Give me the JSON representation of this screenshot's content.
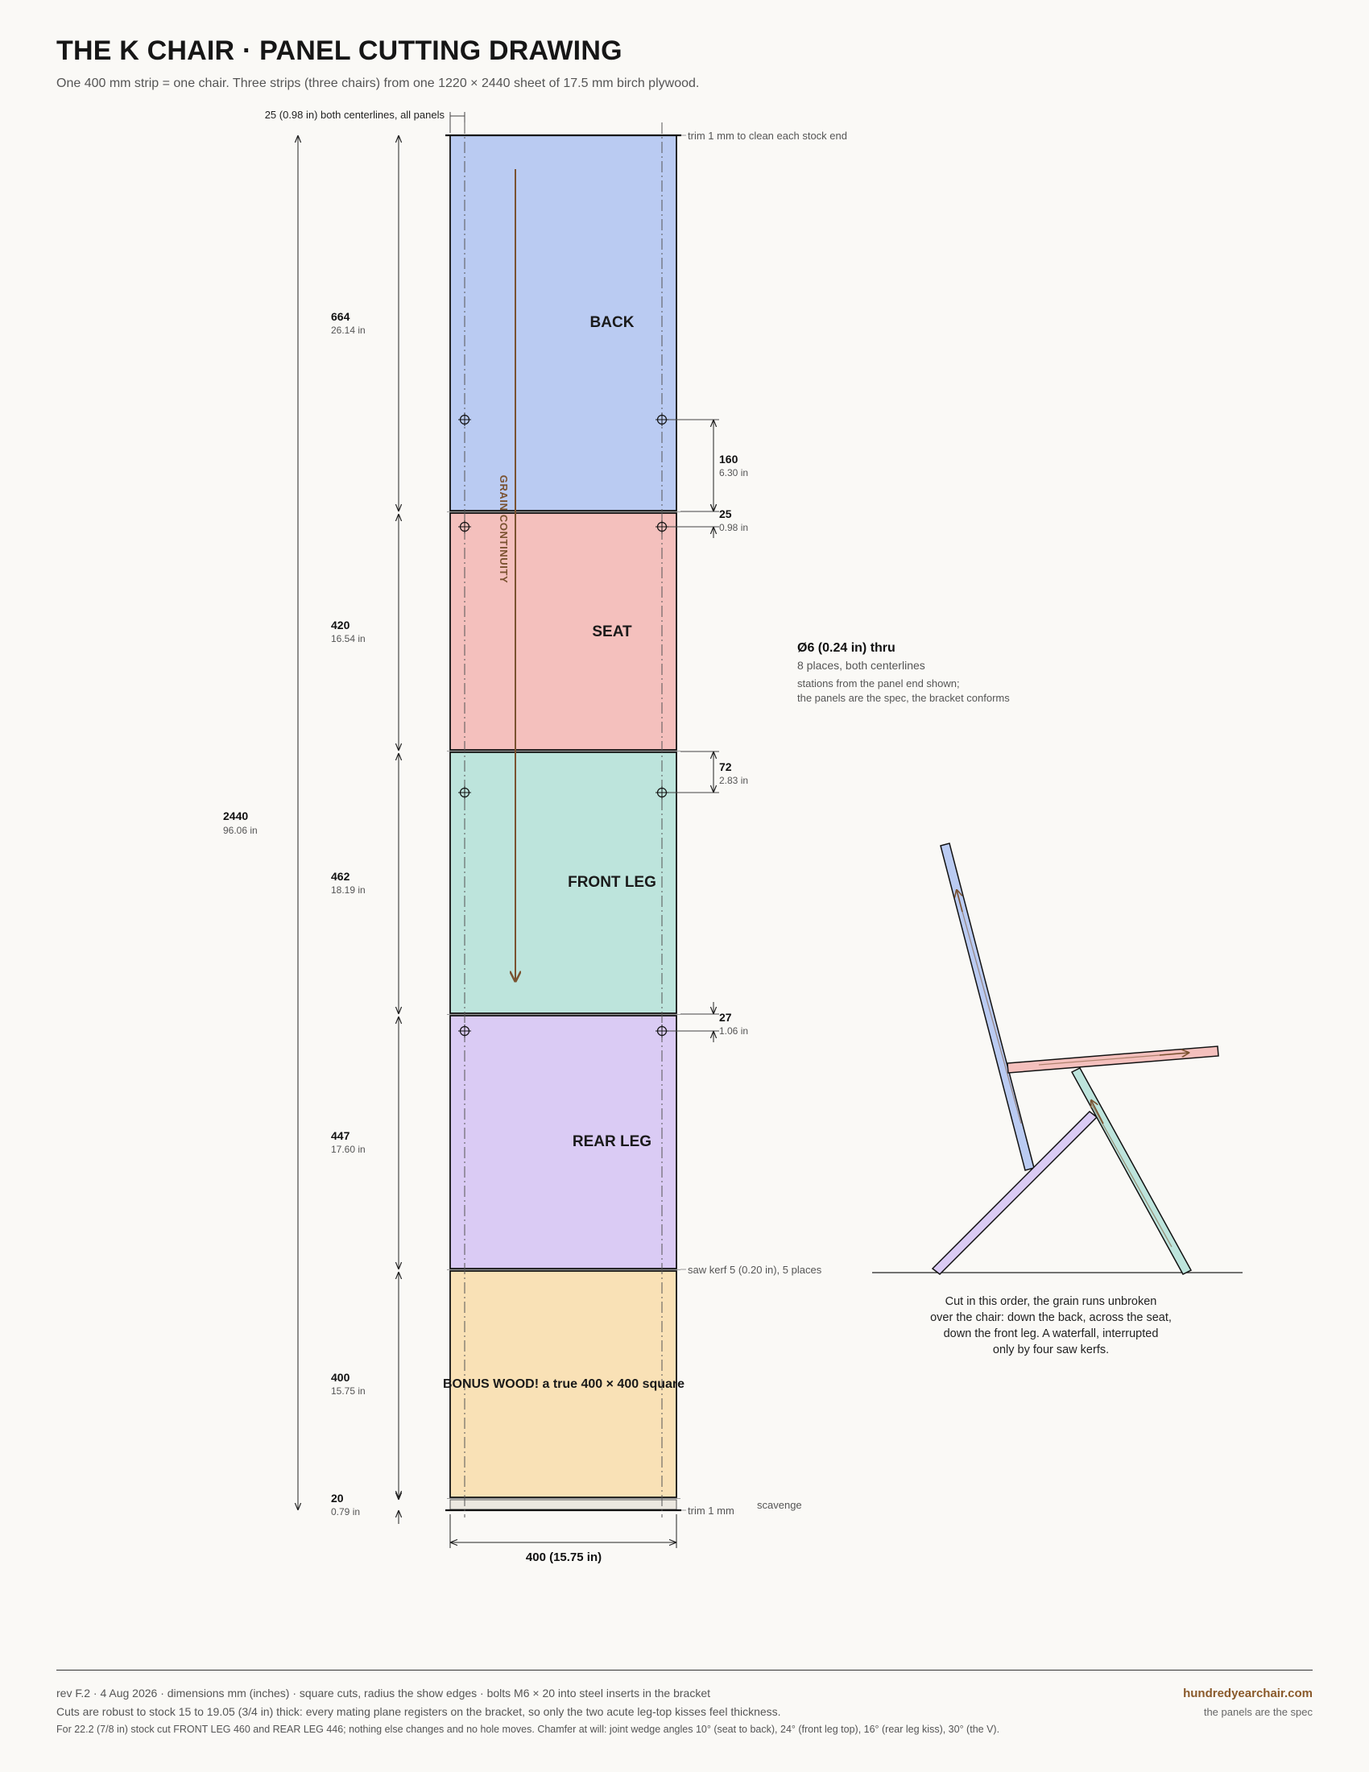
{
  "header": {
    "title": "THE K CHAIR · PANEL CUTTING DRAWING",
    "subtitle": "One 400 mm strip = one chair. Three strips (three chairs) from one 1220 × 2440 sheet of 17.5 mm birch plywood."
  },
  "strip": {
    "centerline_note": "25 (0.98 in) both centerlines, all panels",
    "width_label": "400 (15.75 in)",
    "total": {
      "mm": "2440",
      "in": "96.06 in"
    },
    "panels": [
      {
        "name": "BACK",
        "mm": "664",
        "in": "26.14 in",
        "color": "#bacbf2"
      },
      {
        "name": "SEAT",
        "mm": "420",
        "in": "16.54 in",
        "color": "#f4c0bd"
      },
      {
        "name": "FRONT LEG",
        "mm": "462",
        "in": "18.19 in",
        "color": "#bde4dc"
      },
      {
        "name": "REAR LEG",
        "mm": "447",
        "in": "17.60 in",
        "color": "#dacbf4"
      },
      {
        "name": "BONUS WOOD! a true 400 × 400 square",
        "mm": "400",
        "in": "15.75 in",
        "color": "#f9e1b6"
      },
      {
        "name": "",
        "mm": "20",
        "in": "0.79 in",
        "color": "#ece8e0"
      }
    ],
    "hole_dims": [
      {
        "mm": "160",
        "in": "6.30 in"
      },
      {
        "mm": "25",
        "in": "0.98 in"
      },
      {
        "mm": "72",
        "in": "2.83 in"
      },
      {
        "mm": "27",
        "in": "1.06 in"
      }
    ],
    "notes": {
      "trim_top": "trim 1 mm to clean each stock end",
      "kerf": "saw kerf 5 (0.20 in), 5 places",
      "trim_bottom": "trim 1 mm",
      "scavenge": "scavenge",
      "grain": "GRAIN CONTINUITY"
    }
  },
  "hole_callout": {
    "title": "Ø6 (0.24 in) thru",
    "line1": "8 places, both centerlines",
    "line2": "stations from the panel end shown;",
    "line3": "the panels are the spec, the bracket conforms"
  },
  "chair_caption": [
    "Cut in this order, the grain runs unbroken",
    "over the chair: down the back, across the seat,",
    "down the front leg. A waterfall, interrupted",
    "only by four saw kerfs."
  ],
  "footer": {
    "line1": "rev F.2 · 4 Aug 2026 · dimensions mm (inches) · square cuts, radius the show edges · bolts M6 × 20 into steel inserts in the bracket",
    "line2": "Cuts are robust to stock 15 to 19.05 (3/4 in) thick: every mating plane registers on the bracket, so only the two acute leg-top kisses feel thickness.",
    "line3": "For 22.2 (7/8 in) stock cut FRONT LEG 460 and REAR LEG 446; nothing else changes and no hole moves. Chamfer at will: joint wedge angles 10° (seat to back), 24° (front leg top), 16° (rear leg kiss), 30° (the V).",
    "site": "hundredyearchair.com",
    "tagline": "the panels are the spec"
  },
  "colors": {
    "grain": "#7a5230",
    "ink": "#1c1c1c",
    "back": "#bacbf2",
    "seat": "#f4c0bd",
    "front_leg": "#bde4dc",
    "rear_leg": "#dacbf4"
  }
}
